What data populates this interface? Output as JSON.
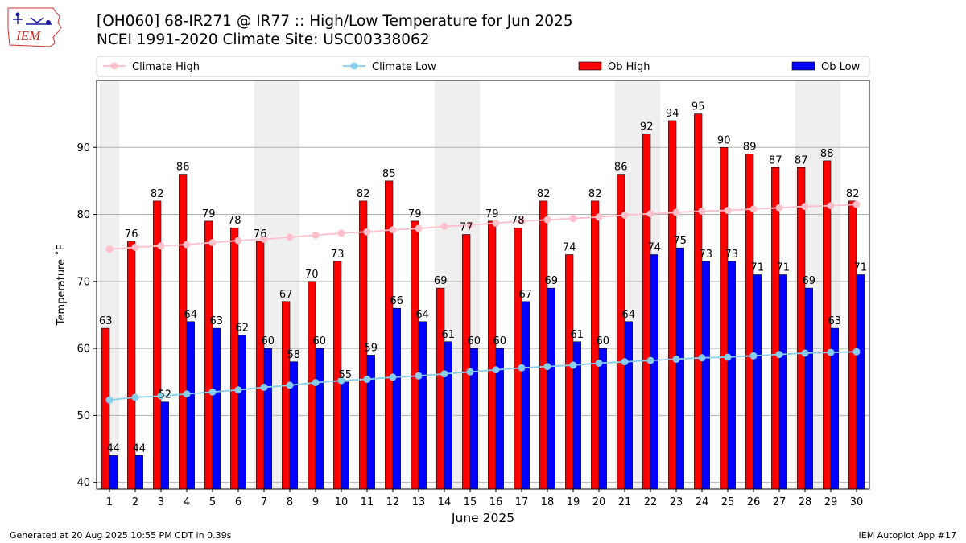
{
  "page": {
    "title_line1": "[OH060] 68-IR271 @ IR77 :: High/Low Temperature for Jun 2025",
    "title_line2": "NCEI 1991-2020 Climate Site: USC00338062",
    "logo_text": "IEM",
    "footer_left": "Generated at 20 Aug 2025 10:55 PM CDT in 0.39s",
    "footer_right": "IEM Autoplot App #17"
  },
  "chart_data": {
    "type": "bar",
    "xlabel": "June 2025",
    "ylabel": "Temperature ˚F",
    "ylim": [
      39,
      100
    ],
    "yticks": [
      40,
      50,
      60,
      70,
      80,
      90
    ],
    "grid": "horizontal",
    "legend_placement": "top, above plot",
    "categories": [
      "1",
      "2",
      "3",
      "4",
      "5",
      "6",
      "7",
      "8",
      "9",
      "10",
      "11",
      "12",
      "13",
      "14",
      "15",
      "16",
      "17",
      "18",
      "19",
      "20",
      "21",
      "22",
      "23",
      "24",
      "25",
      "26",
      "27",
      "28",
      "29",
      "30"
    ],
    "shaded_weekends": [
      [
        1,
        1
      ],
      [
        7,
        8
      ],
      [
        14,
        15
      ],
      [
        21,
        22
      ],
      [
        28,
        29
      ]
    ],
    "series": [
      {
        "name": "Ob High",
        "kind": "bar",
        "color": "#ff0000",
        "values": [
          63,
          76,
          82,
          86,
          79,
          78,
          76,
          67,
          70,
          73,
          82,
          85,
          79,
          69,
          77,
          79,
          78,
          82,
          74,
          82,
          86,
          92,
          94,
          95,
          90,
          89,
          87,
          87,
          88,
          82
        ]
      },
      {
        "name": "Ob Low",
        "kind": "bar",
        "color": "#0000ff",
        "values": [
          44,
          44,
          52,
          64,
          63,
          62,
          60,
          58,
          60,
          55,
          59,
          66,
          64,
          61,
          60,
          60,
          67,
          69,
          61,
          60,
          64,
          74,
          75,
          73,
          73,
          71,
          71,
          69,
          63,
          71
        ]
      },
      {
        "name": "Climate High",
        "kind": "line",
        "color": "#ffc0cb",
        "values": [
          74.8,
          75.1,
          75.3,
          75.5,
          75.8,
          76.1,
          76.3,
          76.6,
          76.9,
          77.2,
          77.4,
          77.7,
          77.9,
          78.2,
          78.4,
          78.7,
          79.0,
          79.2,
          79.4,
          79.6,
          79.9,
          80.1,
          80.3,
          80.5,
          80.6,
          80.8,
          81.0,
          81.2,
          81.3,
          81.5
        ]
      },
      {
        "name": "Climate Low",
        "kind": "line",
        "color": "#87ceeb",
        "values": [
          52.3,
          52.7,
          52.9,
          53.2,
          53.5,
          53.8,
          54.2,
          54.5,
          54.9,
          55.2,
          55.4,
          55.7,
          55.9,
          56.2,
          56.5,
          56.8,
          57.1,
          57.3,
          57.5,
          57.8,
          58.0,
          58.2,
          58.4,
          58.6,
          58.7,
          58.9,
          59.1,
          59.3,
          59.4,
          59.5
        ]
      }
    ]
  }
}
